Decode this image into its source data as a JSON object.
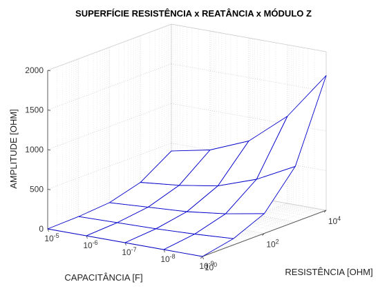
{
  "chart_data": {
    "type": "surface",
    "title": "SUPERFÍCIE RESISTÊNCIA x REATÂNCIA x MÓDULO Z",
    "xlabel": "CAPACITÂNCIA [F]",
    "ylabel": "RESISTÊNCIA [OHM]",
    "zlabel": "AMPLITUDE [OHM]",
    "x_scale": "log",
    "y_scale": "log",
    "z_scale": "linear",
    "xlim": [
      1e-09,
      1e-05
    ],
    "ylim": [
      1,
      10000
    ],
    "zlim": [
      0,
      2000
    ],
    "x_ticks": [
      {
        "value": 1e-05,
        "base": "10",
        "exp": "-5"
      },
      {
        "value": 1e-06,
        "base": "10",
        "exp": "-6"
      },
      {
        "value": 1e-07,
        "base": "10",
        "exp": "-7"
      },
      {
        "value": 1e-08,
        "base": "10",
        "exp": "-8"
      },
      {
        "value": 1e-09,
        "base": "10",
        "exp": "-9"
      }
    ],
    "y_ticks": [
      {
        "value": 1,
        "base": "10",
        "exp": "0"
      },
      {
        "value": 100,
        "base": "10",
        "exp": "2"
      },
      {
        "value": 10000,
        "base": "10",
        "exp": "4"
      }
    ],
    "z_ticks": [
      "0",
      "500",
      "1000",
      "1500",
      "2000"
    ],
    "grid": true,
    "surface_color": "#0000cc",
    "capacitance_F": [
      1e-05,
      1e-06,
      1e-07,
      1e-08,
      1e-09
    ],
    "resistance_ohm": [
      1,
      10,
      100,
      1000,
      10000
    ],
    "z_values": [
      [
        0,
        10,
        40,
        150,
        400
      ],
      [
        0,
        20,
        70,
        200,
        500
      ],
      [
        0,
        30,
        100,
        280,
        700
      ],
      [
        0,
        50,
        160,
        450,
        1100
      ],
      [
        0,
        80,
        250,
        700,
        1700
      ]
    ]
  }
}
